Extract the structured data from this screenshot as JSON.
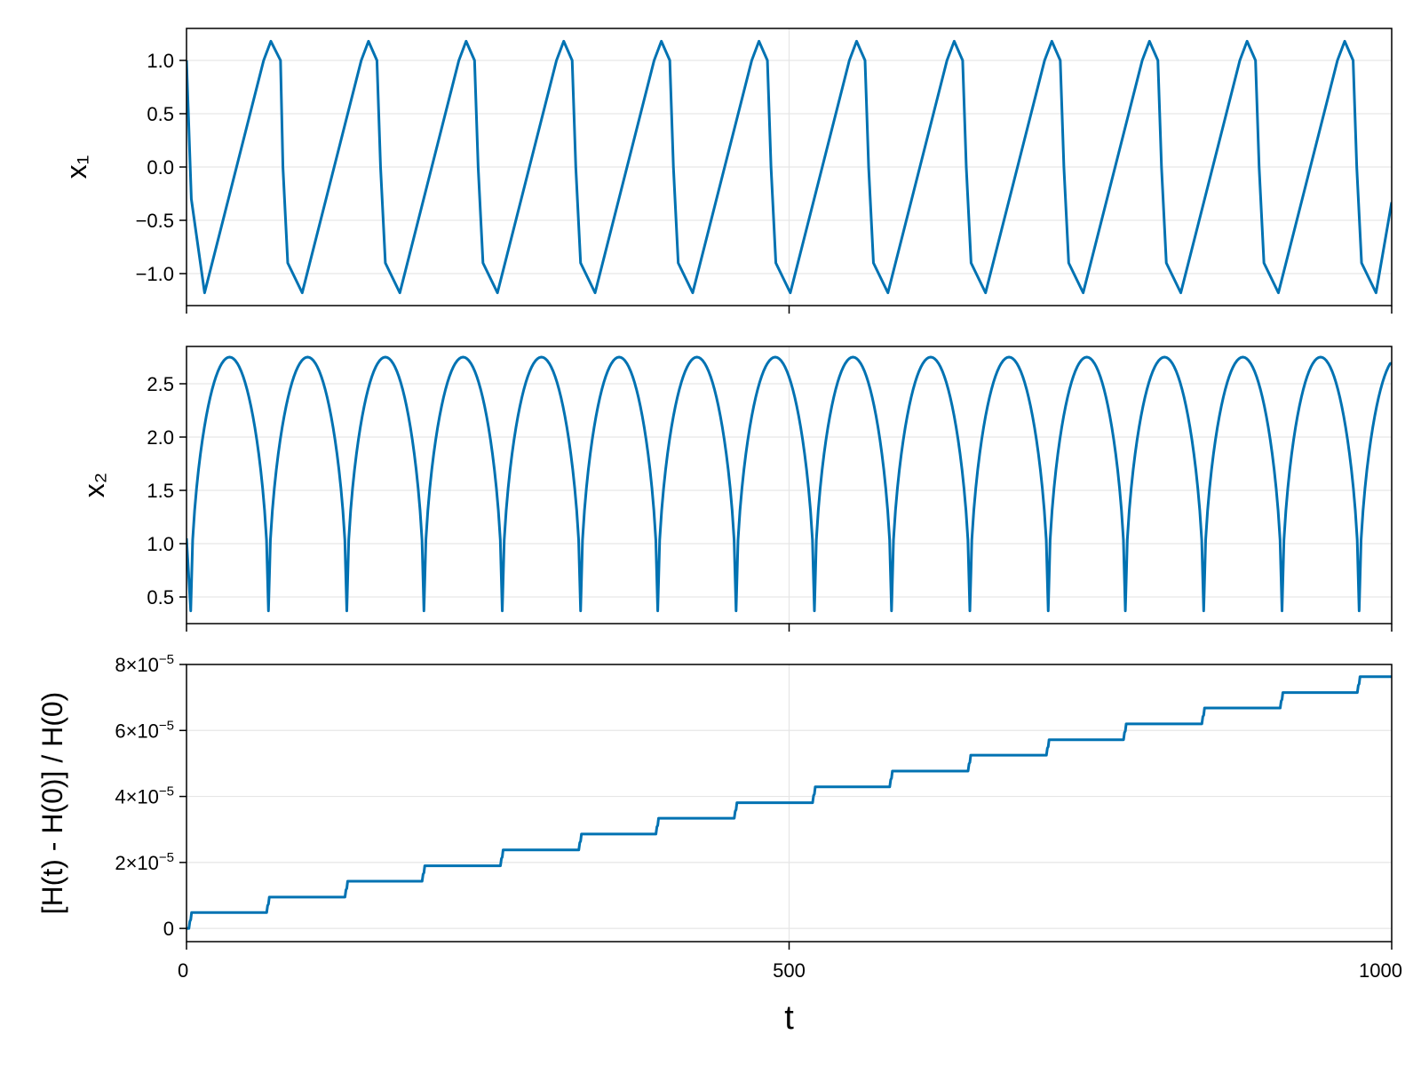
{
  "colors": {
    "series": "#0072b2",
    "grid": "#e6e6e6",
    "frame": "#000000"
  },
  "chart_data": [
    {
      "type": "line",
      "title": "",
      "xlabel": "",
      "ylabel": "x₁",
      "xlim": [
        0,
        1000
      ],
      "ylim": [
        -1.3,
        1.3
      ],
      "x_ticks": [
        0,
        500,
        1000
      ],
      "y_ticks": [
        {
          "value": -1.0,
          "label": "−1.0"
        },
        {
          "value": -0.5,
          "label": "−0.5"
        },
        {
          "value": 0.0,
          "label": "0.0"
        },
        {
          "value": 0.5,
          "label": "0.5"
        },
        {
          "value": 1.0,
          "label": "1.0"
        }
      ],
      "grid": true,
      "series": [
        {
          "x": [
            0,
            4,
            15,
            64,
            70,
            78,
            80,
            84,
            96,
            145,
            151,
            158,
            161,
            165,
            177,
            226,
            232,
            239,
            242,
            246,
            258,
            307,
            313,
            320,
            323,
            327,
            339,
            388,
            394,
            401,
            404,
            408,
            420,
            469,
            475,
            482,
            485,
            489,
            501,
            550,
            556,
            563,
            566,
            570,
            582,
            631,
            637,
            644,
            647,
            651,
            663,
            712,
            718,
            725,
            728,
            732,
            744,
            793,
            799,
            806,
            809,
            813,
            825,
            874,
            880,
            887,
            890,
            894,
            906,
            955,
            961,
            968,
            971,
            975,
            987,
            1000
          ],
          "y": [
            1.0,
            -0.3,
            -1.18,
            1.0,
            1.18,
            1.0,
            0.0,
            -0.9,
            -1.18,
            1.0,
            1.18,
            1.0,
            0.0,
            -0.9,
            -1.18,
            1.0,
            1.18,
            1.0,
            0.0,
            -0.9,
            -1.18,
            1.0,
            1.18,
            1.0,
            0.0,
            -0.9,
            -1.18,
            1.0,
            1.18,
            1.0,
            0.0,
            -0.9,
            -1.18,
            1.0,
            1.18,
            1.0,
            0.0,
            -0.9,
            -1.18,
            1.0,
            1.18,
            1.0,
            0.0,
            -0.9,
            -1.18,
            1.0,
            1.18,
            1.0,
            0.0,
            -0.9,
            -1.18,
            1.0,
            1.18,
            1.0,
            0.0,
            -0.9,
            -1.18,
            1.0,
            1.18,
            1.0,
            0.0,
            -0.9,
            -1.18,
            1.0,
            1.18,
            1.0,
            0.0,
            -0.9,
            -1.18,
            1.0,
            1.18,
            1.0,
            0.0,
            -0.9,
            -1.18,
            -0.33
          ]
        }
      ]
    },
    {
      "type": "line",
      "title": "",
      "xlabel": "",
      "ylabel": "x₂",
      "xlim": [
        0,
        1000
      ],
      "ylim": [
        0.25,
        2.85
      ],
      "x_ticks": [
        0,
        500,
        1000
      ],
      "y_ticks": [
        {
          "value": 0.5,
          "label": "0.5"
        },
        {
          "value": 1.0,
          "label": "1.0"
        },
        {
          "value": 1.5,
          "label": "1.5"
        },
        {
          "value": 2.0,
          "label": "2.0"
        },
        {
          "value": 2.5,
          "label": "2.5"
        }
      ],
      "grid": true,
      "arches": {
        "minima_x": [
          3.5,
          68,
          133,
          197,
          262,
          327,
          391,
          456,
          521,
          585,
          650,
          715,
          779,
          844,
          909,
          973
        ],
        "min_value": 0.37,
        "max_value": 2.75,
        "end_x": 1000,
        "end_value": 2.69
      }
    },
    {
      "type": "line",
      "title": "",
      "xlabel": "t",
      "ylabel": "[H(t) - H(0)] / H(0)",
      "xlim": [
        0,
        1000
      ],
      "ylim": [
        -4e-06,
        8e-05
      ],
      "x_ticks": [
        {
          "value": 0,
          "label": "0"
        },
        {
          "value": 500,
          "label": "500"
        },
        {
          "value": 1000,
          "label": "1000"
        }
      ],
      "y_ticks": [
        {
          "value": 0,
          "mantissa": "0",
          "exponent": ""
        },
        {
          "value": 2e-05,
          "mantissa": "2×10",
          "exponent": "−5"
        },
        {
          "value": 4e-05,
          "mantissa": "4×10",
          "exponent": "−5"
        },
        {
          "value": 6e-05,
          "mantissa": "6×10",
          "exponent": "−5"
        },
        {
          "value": 8e-05,
          "mantissa": "8×10",
          "exponent": "−5"
        }
      ],
      "grid": true,
      "steps": {
        "x": [
          3.5,
          68,
          133,
          197,
          262,
          327,
          391,
          456,
          521,
          585,
          650,
          715,
          779,
          844,
          909,
          973
        ],
        "levels": [
          4.8e-06,
          9.5e-06,
          1.43e-05,
          1.9e-05,
          2.38e-05,
          2.86e-05,
          3.34e-05,
          3.81e-05,
          4.29e-05,
          4.77e-05,
          5.25e-05,
          5.72e-05,
          6.2e-05,
          6.68e-05,
          7.15e-05,
          7.63e-05
        ],
        "start": 0
      }
    }
  ]
}
